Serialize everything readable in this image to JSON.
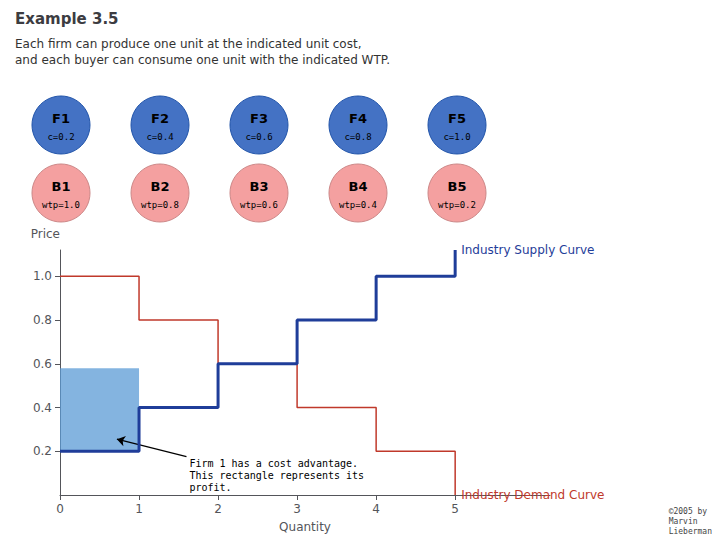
{
  "chart_data": {
    "type": "line",
    "title": "Example 3.5",
    "subtitle": "Each firm can produce one unit at the indicated unit cost,\nand each buyer can consume one unit with the indicated WTP.",
    "xlabel": "Quantity",
    "ylabel": "Price",
    "xlim": [
      0,
      6.2
    ],
    "ylim": [
      0,
      1.12
    ],
    "xticks": [
      0,
      1,
      2,
      3,
      4,
      5
    ],
    "yticks": [
      0.2,
      0.4,
      0.6,
      0.8,
      {
        "value": 1.0,
        "label": "1.0"
      }
    ],
    "grid": false,
    "legend": false,
    "series": [
      {
        "name": "Industry Supply Curve",
        "color": "#1F3D99",
        "x": [
          0,
          1,
          1,
          2,
          2,
          3,
          3,
          4,
          4,
          5,
          5
        ],
        "values": [
          0.2,
          0.2,
          0.4,
          0.4,
          0.6,
          0.6,
          0.8,
          0.8,
          1.0,
          1.0,
          1.12
        ]
      },
      {
        "name": "Industry Demand Curve",
        "color": "#C0392B",
        "x": [
          0,
          1,
          1,
          2,
          2,
          3,
          3,
          4,
          4,
          5,
          5
        ],
        "values": [
          1.0,
          1.0,
          0.8,
          0.8,
          0.6,
          0.6,
          0.4,
          0.4,
          0.2,
          0.2,
          0.0
        ]
      }
    ],
    "profit_rect": {
      "x": 0,
      "y": 0.2,
      "width": 1,
      "height": 0.38,
      "color": "#5B9BD5"
    },
    "annotation": "Firm 1 has a cost advantage.\nThis rectangle represents its\nprofit.",
    "firms": {
      "color": "#4472C4",
      "items": [
        {
          "label": "F1",
          "sublabel": "c=0.2"
        },
        {
          "label": "F2",
          "sublabel": "c=0.4"
        },
        {
          "label": "F3",
          "sublabel": "c=0.6"
        },
        {
          "label": "F4",
          "sublabel": "c=0.8"
        },
        {
          "label": "F5",
          "sublabel": "c=1.0"
        }
      ]
    },
    "buyers": {
      "color": "#F4A0A0",
      "items": [
        {
          "label": "B1",
          "sublabel": "wtp=1.0"
        },
        {
          "label": "B2",
          "sublabel": "wtp=0.8"
        },
        {
          "label": "B3",
          "sublabel": "wtp=0.6"
        },
        {
          "label": "B4",
          "sublabel": "wtp=0.4"
        },
        {
          "label": "B5",
          "sublabel": "wtp=0.2"
        }
      ]
    },
    "copyright": "©2005 by\nMarvin\nLieberman"
  }
}
